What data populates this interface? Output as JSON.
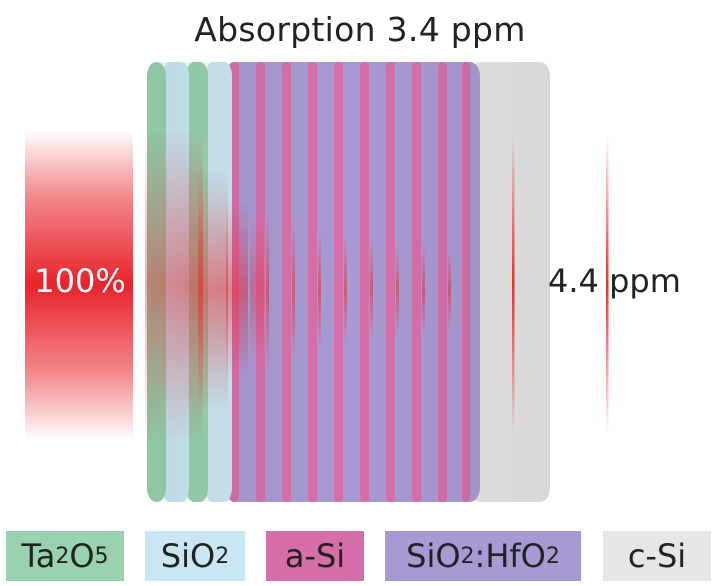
{
  "title": "Absorption 3.4 ppm",
  "incident_label": "100%",
  "transmitted_label": "4.4 ppm",
  "legend": [
    {
      "key": "ta2o5",
      "base": "Ta",
      "sub1": "2",
      "mid": "O",
      "sub2": "5",
      "tail": "",
      "color": "#98d2ae"
    },
    {
      "key": "sio2",
      "base": "SiO",
      "sub1": "2",
      "mid": "",
      "sub2": "",
      "tail": "",
      "color": "#c9e7f3"
    },
    {
      "key": "asi",
      "base": "a-Si",
      "sub1": "",
      "mid": "",
      "sub2": "",
      "tail": "",
      "color": "#d66fa9"
    },
    {
      "key": "hf",
      "base": "SiO",
      "sub1": "2",
      "mid": ":HfO",
      "sub2": "2",
      "tail": "",
      "color": "#a79ad2"
    },
    {
      "key": "csi",
      "base": "c-Si",
      "sub1": "",
      "mid": "",
      "sub2": "",
      "tail": "",
      "color": "#e6e6e6"
    }
  ],
  "colors": {
    "ta2o5": "#98d2ae",
    "sio2": "#c9e7f3",
    "asi": "#d66fa9",
    "hf": "#a79ad2",
    "csi": "#e6e6e6",
    "beam": "#e8232b"
  }
}
